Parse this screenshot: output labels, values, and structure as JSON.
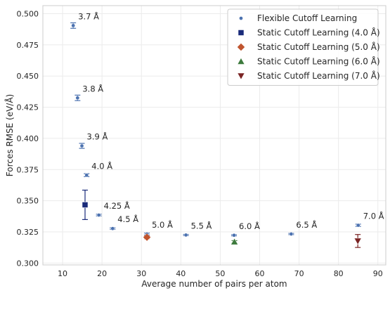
{
  "chart_data": {
    "type": "scatter",
    "xlabel": "Average number of pairs per atom",
    "ylabel": "Forces RMSE (eV/Å)",
    "xlim": [
      5,
      92
    ],
    "ylim": [
      0.2985,
      0.5065
    ],
    "xticks": [
      10,
      20,
      30,
      40,
      50,
      60,
      70,
      80,
      90
    ],
    "yticks": [
      0.3,
      0.325,
      0.35,
      0.375,
      0.4,
      0.425,
      0.45,
      0.475,
      0.5
    ],
    "ytick_labels": [
      "0.300",
      "0.325",
      "0.350",
      "0.375",
      "0.400",
      "0.425",
      "0.450",
      "0.475",
      "0.500"
    ],
    "grid": true,
    "legend_position": "top-right",
    "series": [
      {
        "name": "Flexible Cutoff Learning",
        "marker": "circle",
        "color": "#4c72b0",
        "points": [
          {
            "x": 12.7,
            "y": 0.4905,
            "err": 0.0022,
            "label": "3.7 Å"
          },
          {
            "x": 13.8,
            "y": 0.4325,
            "err": 0.0022,
            "label": "3.8 Å"
          },
          {
            "x": 14.9,
            "y": 0.394,
            "err": 0.002,
            "label": "3.9 Å"
          },
          {
            "x": 16.1,
            "y": 0.3705,
            "err": 0.0012,
            "label": "4.0 Å"
          },
          {
            "x": 19.2,
            "y": 0.3385,
            "err": 0.0007,
            "label": "4.25 Å"
          },
          {
            "x": 22.7,
            "y": 0.3277,
            "err": 0.0006,
            "label": "4.5 Å"
          },
          {
            "x": 31.4,
            "y": 0.3233,
            "err": 0.0008,
            "label": "5.0 Å"
          },
          {
            "x": 41.3,
            "y": 0.3225,
            "err": 0.0005,
            "label": "5.5 Å"
          },
          {
            "x": 53.5,
            "y": 0.3223,
            "err": 0.0005,
            "label": "6.0 Å"
          },
          {
            "x": 68.0,
            "y": 0.3233,
            "err": 0.0005,
            "label": "6.5 Å"
          },
          {
            "x": 85.0,
            "y": 0.3303,
            "err": 0.0009,
            "label": "7.0 Å"
          }
        ]
      },
      {
        "name": "Static Cutoff Learning (4.0 Å)",
        "marker": "square",
        "color": "#1a2b7a",
        "points": [
          {
            "x": 15.7,
            "y": 0.3467,
            "err": 0.0118
          }
        ]
      },
      {
        "name": "Static Cutoff Learning (5.0 Å)",
        "marker": "diamond",
        "color": "#c0552f",
        "points": [
          {
            "x": 31.4,
            "y": 0.3207,
            "err": 0.0012
          }
        ]
      },
      {
        "name": "Static Cutoff Learning (6.0 Å)",
        "marker": "triangle-up",
        "color": "#3d7a3d",
        "points": [
          {
            "x": 53.6,
            "y": 0.317,
            "err": 0.001
          }
        ]
      },
      {
        "name": "Static Cutoff Learning (7.0 Å)",
        "marker": "triangle-down",
        "color": "#7a2424",
        "points": [
          {
            "x": 84.9,
            "y": 0.3177,
            "err": 0.0052
          }
        ]
      }
    ]
  }
}
